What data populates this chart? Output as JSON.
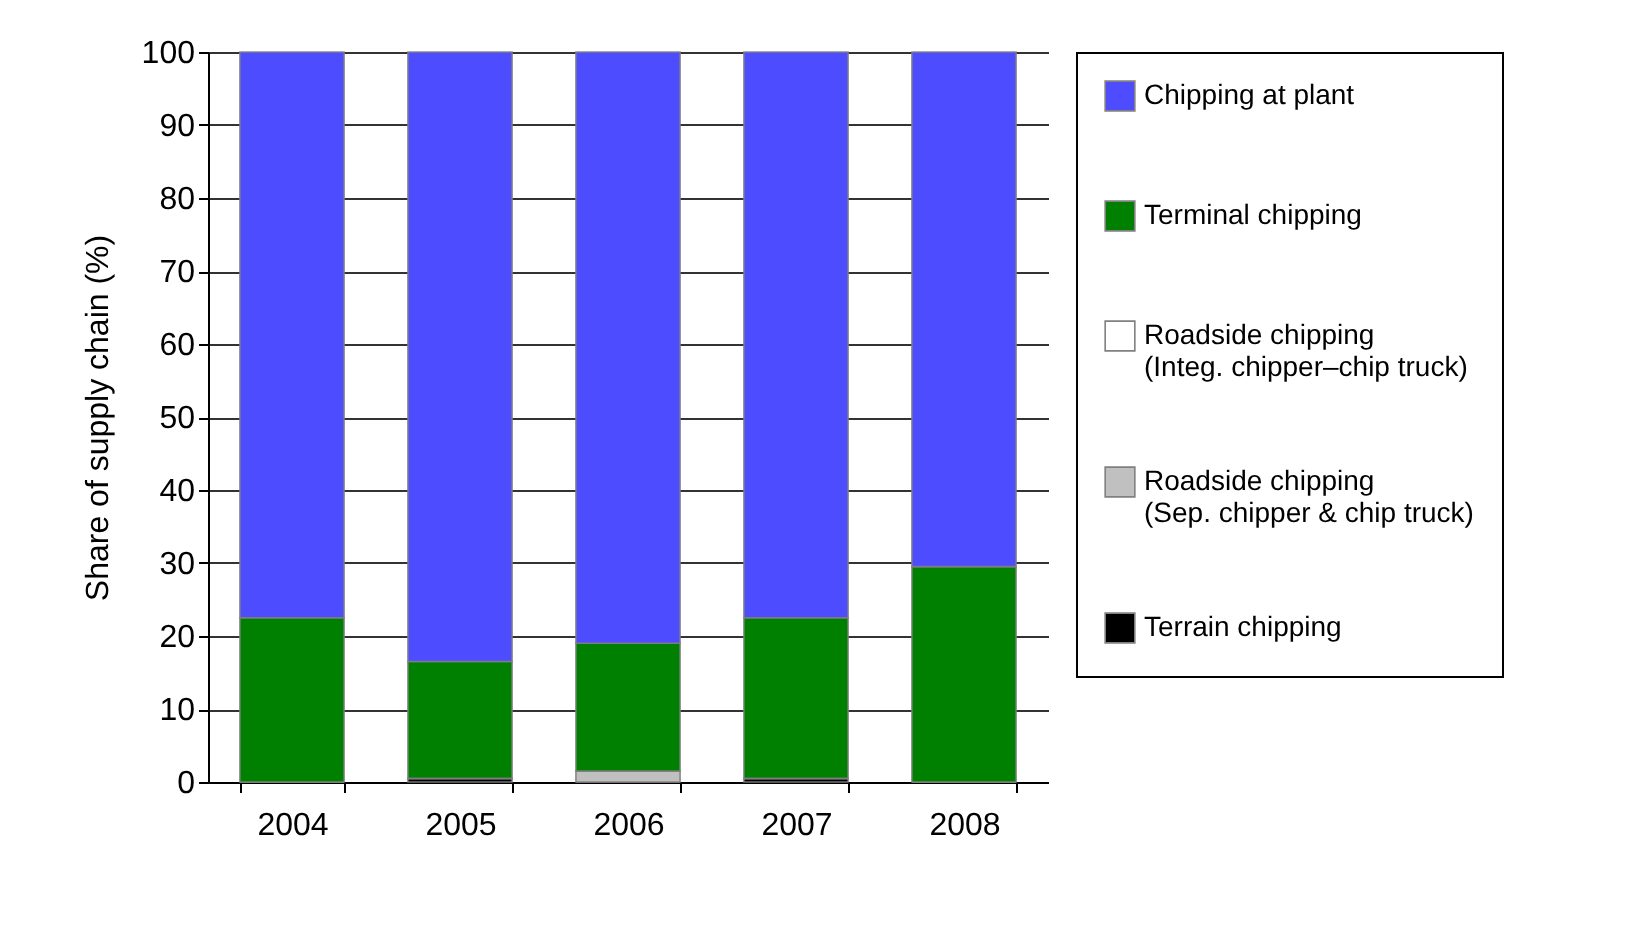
{
  "chart_data": {
    "type": "bar",
    "stacked": true,
    "ylabel": "Share of supply chain (%)",
    "categories": [
      "2004",
      "2005",
      "2006",
      "2007",
      "2008"
    ],
    "series": [
      {
        "name": "Terrain chipping",
        "color": "#000000",
        "values": [
          0,
          0.5,
          0,
          0.5,
          0
        ]
      },
      {
        "name": "Roadside chipping (Sep. chipper & chip truck)",
        "color": "#c0c0c0",
        "values": [
          0,
          0,
          1.5,
          0,
          0
        ]
      },
      {
        "name": "Roadside chipping (Integ. chipper–chip truck)",
        "color": "#ffffff",
        "values": [
          0,
          0,
          0,
          0,
          0
        ]
      },
      {
        "name": "Terminal chipping",
        "color": "#008000",
        "values": [
          22.5,
          16,
          17.5,
          22,
          29.5
        ]
      },
      {
        "name": "Chipping at plant",
        "color": "#4d4dff",
        "values": [
          77.5,
          83.5,
          81,
          77.5,
          70.5
        ]
      }
    ],
    "ylim": [
      0,
      100
    ],
    "yticks": [
      0,
      10,
      20,
      30,
      40,
      50,
      60,
      70,
      80,
      90,
      100
    ],
    "grid": "y",
    "legend": "right"
  }
}
